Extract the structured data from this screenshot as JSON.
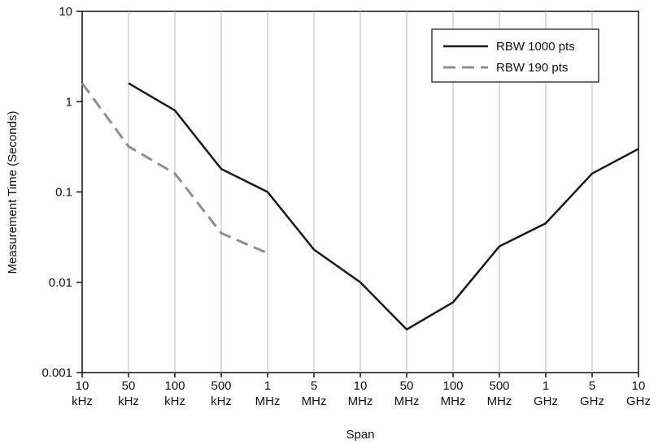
{
  "chart_data": {
    "type": "line",
    "xlabel": "Span",
    "ylabel": "Measurement Time (Seconds)",
    "y_scale": "log",
    "ylim": [
      0.001,
      10
    ],
    "y_ticks": [
      "10",
      "1",
      "0.1",
      "0.01",
      "0.001"
    ],
    "categories": [
      "10 kHz",
      "50 kHz",
      "100 kHz",
      "500 kHz",
      "1 MHz",
      "5 MHz",
      "10 MHz",
      "50 MHz",
      "100 MHz",
      "500 MHz",
      "1 GHz",
      "5 GHz",
      "10 GHz"
    ],
    "category_lines": [
      [
        "10",
        "kHz"
      ],
      [
        "50",
        "kHz"
      ],
      [
        "100",
        "kHz"
      ],
      [
        "500",
        "kHz"
      ],
      [
        "1",
        "MHz"
      ],
      [
        "5",
        "MHz"
      ],
      [
        "10",
        "MHz"
      ],
      [
        "50",
        "MHz"
      ],
      [
        "100",
        "MHz"
      ],
      [
        "500",
        "MHz"
      ],
      [
        "1",
        "GHz"
      ],
      [
        "5",
        "GHz"
      ],
      [
        "10",
        "GHz"
      ]
    ],
    "grid": "vertical",
    "legend_position": "top-right",
    "series": [
      {
        "name": "RBW 1000 pts",
        "color": "#1a1a1a",
        "dash": "solid",
        "values": [
          null,
          1.6,
          0.8,
          0.18,
          0.1,
          0.023,
          0.01,
          0.003,
          0.006,
          0.025,
          0.045,
          0.16,
          0.3
        ]
      },
      {
        "name": "RBW 190 pts",
        "color": "#8f8f8f",
        "dash": "dashed",
        "values": [
          1.6,
          0.32,
          0.16,
          0.035,
          0.021,
          null,
          null,
          null,
          null,
          null,
          null,
          null,
          null
        ]
      }
    ]
  }
}
